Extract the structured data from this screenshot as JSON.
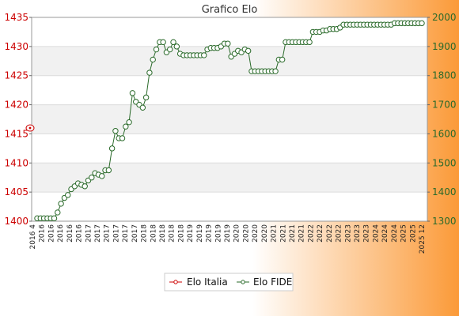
{
  "chart_data": {
    "type": "line",
    "title": "Grafico Elo",
    "y_left": {
      "min": 1400,
      "max": 1435,
      "ticks": [
        1400,
        1405,
        1410,
        1415,
        1420,
        1425,
        1430,
        1435
      ],
      "color": "#cc0000"
    },
    "y_right": {
      "min": 1300,
      "max": 2000,
      "ticks": [
        1300,
        1400,
        1500,
        1600,
        1700,
        1800,
        1900,
        2000
      ],
      "color": "#2a6a2a"
    },
    "grid": "horizontal",
    "legend_position": "bottom-center",
    "x_label_sample": [
      "2016 4",
      "2016",
      "2016",
      "2016",
      "2016",
      "2016",
      "2017",
      "2017",
      "2017",
      "2017",
      "2017",
      "2017",
      "2018",
      "2018",
      "2018",
      "2018",
      "2018",
      "2019",
      "2019",
      "2019",
      "2019",
      "2019",
      "2020",
      "2020",
      "2020",
      "2020",
      "2021",
      "2021",
      "2021",
      "2021",
      "2022",
      "2022",
      "2022",
      "2022",
      "2023",
      "2023",
      "2023",
      "2024",
      "2024",
      "2024",
      "2025",
      "2025",
      "2025 12"
    ],
    "series": [
      {
        "name": "Elo Italia",
        "axis": "left",
        "color": "#cc0000",
        "values": [
          1416
        ]
      },
      {
        "name": "Elo FIDE",
        "axis": "right",
        "color": "#2a6a2a",
        "values": [
          1310,
          1310,
          1310,
          1310,
          1310,
          1310,
          1330,
          1360,
          1380,
          1390,
          1410,
          1420,
          1430,
          1425,
          1420,
          1440,
          1450,
          1465,
          1460,
          1455,
          1475,
          1475,
          1550,
          1610,
          1585,
          1585,
          1625,
          1640,
          1740,
          1710,
          1700,
          1690,
          1725,
          1810,
          1855,
          1890,
          1915,
          1915,
          1880,
          1890,
          1915,
          1900,
          1875,
          1870,
          1870,
          1870,
          1870,
          1870,
          1870,
          1870,
          1890,
          1895,
          1895,
          1895,
          1900,
          1910,
          1910,
          1865,
          1875,
          1885,
          1880,
          1890,
          1885,
          1815,
          1815,
          1815,
          1815,
          1815,
          1815,
          1815,
          1815,
          1855,
          1855,
          1915,
          1915,
          1915,
          1915,
          1915,
          1915,
          1915,
          1915,
          1950,
          1950,
          1950,
          1955,
          1955,
          1960,
          1960,
          1960,
          1965,
          1975,
          1975,
          1975,
          1975,
          1975,
          1975,
          1975,
          1975,
          1975,
          1975,
          1975,
          1975,
          1975,
          1975,
          1975,
          1980,
          1980,
          1980,
          1980,
          1980,
          1980,
          1980,
          1980,
          1980
        ]
      }
    ]
  }
}
